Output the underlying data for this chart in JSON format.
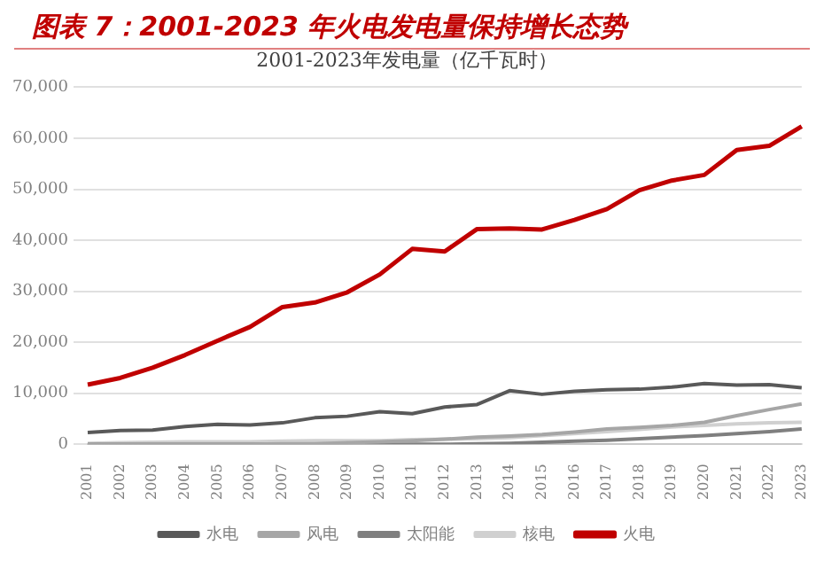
{
  "chart_data": {
    "type": "line",
    "title": "图表 7：2001-2023 年火电发电量保持增长态势",
    "subtitle": "2001-2023年发电量（亿千瓦时）",
    "categories": [
      "2001",
      "2002",
      "2003",
      "2004",
      "2005",
      "2006",
      "2007",
      "2008",
      "2009",
      "2010",
      "2011",
      "2012",
      "2013",
      "2014",
      "2015",
      "2016",
      "2017",
      "2018",
      "2019",
      "2020",
      "2021",
      "2022",
      "2023"
    ],
    "series": [
      {
        "name": "水电",
        "color": "#595959",
        "values": [
          2300,
          2700,
          2800,
          3500,
          3900,
          3800,
          4200,
          5200,
          5500,
          6400,
          6000,
          7300,
          7800,
          10500,
          9800,
          10400,
          10700,
          10800,
          11200,
          11900,
          11600,
          11700,
          11100
        ]
      },
      {
        "name": "风电",
        "color": "#a6a6a6",
        "values": [
          0,
          0,
          0,
          0,
          0,
          0,
          100,
          100,
          300,
          500,
          700,
          1000,
          1400,
          1600,
          1900,
          2400,
          3000,
          3300,
          3700,
          4300,
          5600,
          6800,
          7900
        ]
      },
      {
        "name": "太阳能",
        "color": "#7f7f7f",
        "values": [
          0,
          0,
          0,
          0,
          0,
          0,
          0,
          0,
          0,
          0,
          0,
          0,
          100,
          200,
          400,
          600,
          800,
          1100,
          1400,
          1700,
          2100,
          2500,
          3000
        ]
      },
      {
        "name": "核电",
        "color": "#d0d0d0",
        "values": [
          200,
          300,
          400,
          500,
          500,
          500,
          600,
          700,
          700,
          700,
          900,
          1000,
          1100,
          1300,
          1700,
          2100,
          2500,
          2900,
          3400,
          3700,
          4000,
          4200,
          4300
        ]
      },
      {
        "name": "火电",
        "color": "#c00000",
        "values": [
          11700,
          13000,
          15000,
          17500,
          20300,
          23000,
          26900,
          27800,
          29800,
          33300,
          38300,
          37800,
          42200,
          42300,
          42100,
          44000,
          46100,
          49800,
          51700,
          52800,
          57700,
          58500,
          62300
        ]
      }
    ],
    "ylim": [
      0,
      70000
    ],
    "yticks": [
      0,
      {
        "value": 10000,
        "label": "10,000"
      },
      {
        "value": 20000,
        "label": "20,000"
      },
      {
        "value": 30000,
        "label": "30,000"
      },
      {
        "value": 40000,
        "label": "40,000"
      },
      {
        "value": 50000,
        "label": "50,000"
      },
      {
        "value": 60000,
        "label": "60,000"
      },
      {
        "value": 70000,
        "label": "70,000"
      }
    ],
    "grid": "y",
    "legend": "bottom",
    "marker": "none",
    "line_style": "solid"
  }
}
